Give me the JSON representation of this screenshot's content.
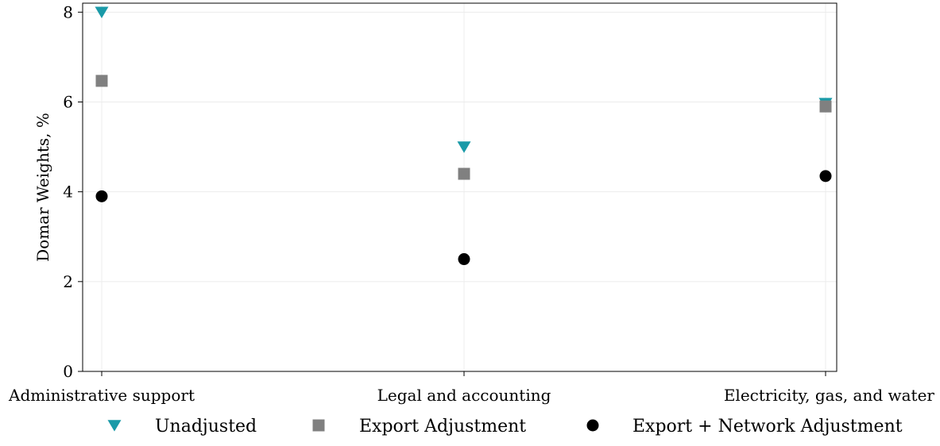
{
  "chart_data": {
    "type": "scatter",
    "title": "",
    "xlabel": "",
    "ylabel": "Domar Weights, %",
    "categories": [
      "Administrative support",
      "Legal and accounting",
      "Electricity, gas, and water"
    ],
    "ylim": [
      0,
      8.2
    ],
    "yticks": [
      "0",
      "2",
      "4",
      "6",
      "8"
    ],
    "grid": true,
    "legend_position": "bottom",
    "series": [
      {
        "name": "Unadjusted",
        "marker": "triangle-down",
        "color": "#1a9aa8",
        "values": [
          8.0,
          5.0,
          5.97
        ]
      },
      {
        "name": "Export Adjustment",
        "marker": "square",
        "color": "#808080",
        "values": [
          6.47,
          4.4,
          5.9
        ]
      },
      {
        "name": "Export + Network Adjustment",
        "marker": "circle",
        "color": "#000000",
        "values": [
          3.9,
          2.5,
          4.35
        ]
      }
    ]
  }
}
